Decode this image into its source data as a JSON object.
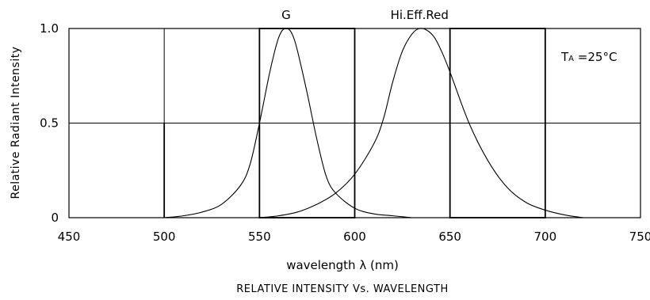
{
  "chart_data": {
    "type": "line",
    "title": "RELATIVE INTENSITY Vs. WAVELENGTH",
    "xlabel": "wavelength λ (nm)",
    "ylabel": "Relative Radiant Intensity",
    "xlim": [
      450,
      750
    ],
    "ylim": [
      0,
      1.0
    ],
    "x_ticks": [
      "450",
      "500",
      "550",
      "600",
      "650",
      "700",
      "750"
    ],
    "y_ticks": [
      "0",
      "0.5",
      "1.0"
    ],
    "grid": true,
    "annotation": {
      "symbol": "T",
      "sub": "A",
      "rest": " =25°C"
    },
    "series": [
      {
        "name": "G",
        "x": [
          500,
          510,
          520,
          530,
          540,
          545,
          550,
          555,
          558,
          560,
          562,
          564,
          566,
          568,
          570,
          575,
          580,
          585,
          590,
          600,
          610,
          620,
          630
        ],
        "y": [
          0,
          0.01,
          0.03,
          0.07,
          0.17,
          0.28,
          0.5,
          0.75,
          0.88,
          0.95,
          0.99,
          1.0,
          0.99,
          0.95,
          0.88,
          0.66,
          0.42,
          0.22,
          0.13,
          0.05,
          0.02,
          0.01,
          0
        ]
      },
      {
        "name": "Hi.Eff.Red",
        "x": [
          550,
          560,
          570,
          580,
          590,
          600,
          610,
          615,
          620,
          625,
          630,
          634,
          638,
          642,
          646,
          650,
          660,
          670,
          680,
          690,
          700,
          710,
          720
        ],
        "y": [
          0,
          0.01,
          0.03,
          0.07,
          0.13,
          0.23,
          0.39,
          0.52,
          0.72,
          0.88,
          0.97,
          1.0,
          0.99,
          0.95,
          0.87,
          0.77,
          0.5,
          0.3,
          0.16,
          0.08,
          0.04,
          0.015,
          0
        ]
      }
    ]
  }
}
